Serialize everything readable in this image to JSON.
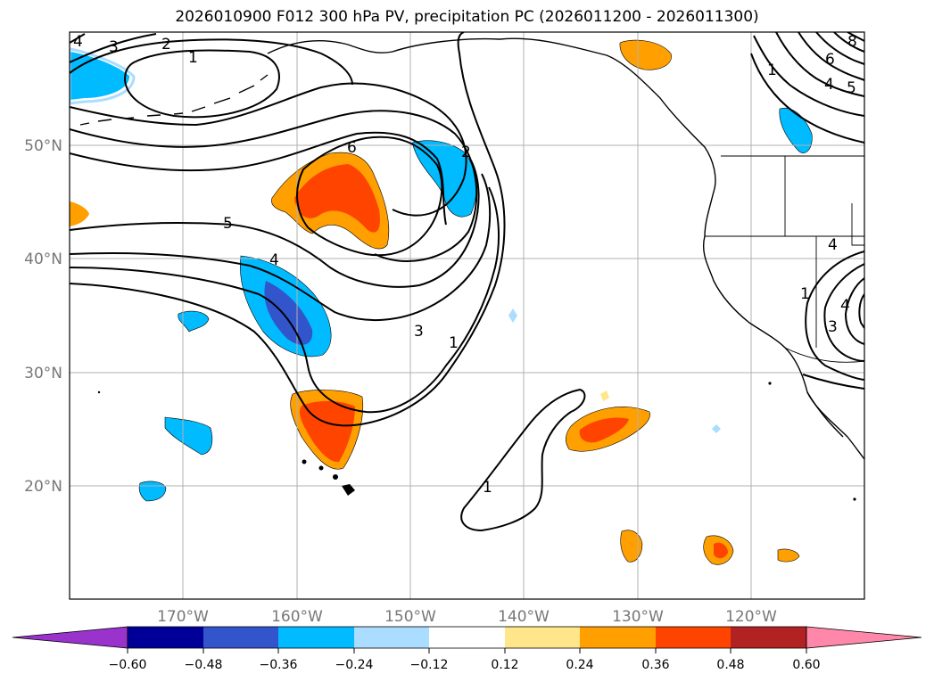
{
  "title": "2026010900 F012 300 hPa PV, precipitation PC (2026011200 - 2026011300)",
  "map": {
    "lat_ticks": [
      "20°N",
      "30°N",
      "40°N",
      "50°N"
    ],
    "lon_ticks": [
      "170°W",
      "160°W",
      "150°W",
      "140°W",
      "130°W",
      "120°W"
    ],
    "contour_labels": [
      "4",
      "3",
      "2",
      "1",
      "6",
      "5",
      "4",
      "3",
      "1",
      "1",
      "2",
      "6",
      "8",
      "4",
      "5",
      "1",
      "4",
      "3",
      "4",
      "1"
    ]
  },
  "colorbar": {
    "labels": [
      "−0.60",
      "−0.48",
      "−0.36",
      "−0.24",
      "−0.12",
      "0.12",
      "0.24",
      "0.36",
      "0.48",
      "0.60"
    ],
    "colors": [
      "#9933cc",
      "#000099",
      "#3355cc",
      "#00bbff",
      "#aaddff",
      "#ffffff",
      "#ffe68a",
      "#ff9f00",
      "#ff4400",
      "#b22222",
      "#ff88aa"
    ]
  }
}
